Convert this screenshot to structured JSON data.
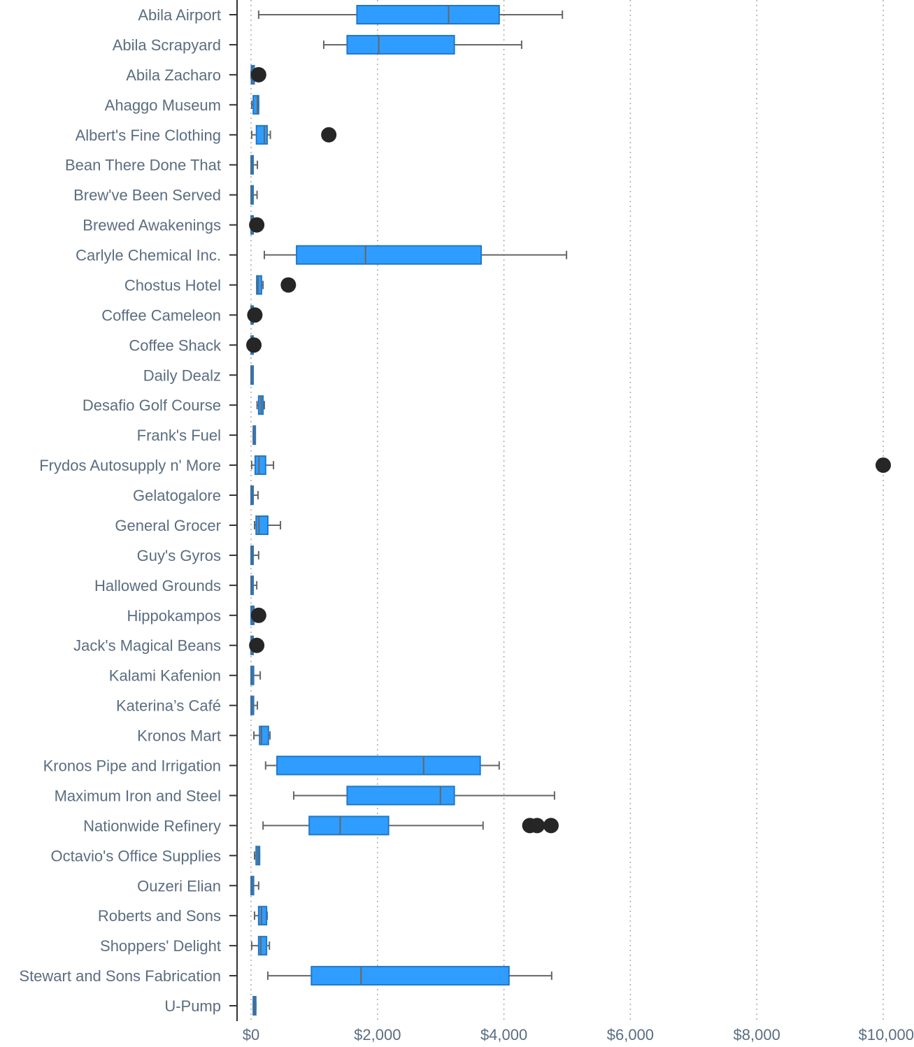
{
  "chart_data": {
    "type": "boxplot",
    "orientation": "horizontal",
    "title": "",
    "xlabel": "",
    "ylabel": "",
    "xlim": [
      0,
      10000
    ],
    "x_ticks": [
      0,
      2000,
      4000,
      6000,
      8000,
      10000
    ],
    "x_tick_labels": [
      "$0",
      "$2,000",
      "$4,000",
      "$6,000",
      "$8,000",
      "$10,000"
    ],
    "grid": "vertical dotted",
    "colors": {
      "box_fill": "#2f9dff",
      "box_stroke": "#1f78c8",
      "whisker": "#666666",
      "outlier": "#262626",
      "text": "#5b6d80"
    },
    "categories": [
      "Abila Airport",
      "Abila Scrapyard",
      "Abila Zacharo",
      "Ahaggo Museum",
      "Albert's Fine Clothing",
      "Bean There Done That",
      "Brew've Been Served",
      "Brewed Awakenings",
      "Carlyle Chemical Inc.",
      "Chostus Hotel",
      "Coffee Cameleon",
      "Coffee Shack",
      "Daily Dealz",
      "Desafio Golf Course",
      "Frank's Fuel",
      "Frydos Autosupply n' More",
      "Gelatogalore",
      "General Grocer",
      "Guy's Gyros",
      "Hallowed Grounds",
      "Hippokampos",
      "Jack's Magical Beans",
      "Kalami Kafenion",
      "Katerina’s Café",
      "Kronos Mart",
      "Kronos Pipe and Irrigation",
      "Maximum Iron and Steel",
      "Nationwide Refinery",
      "Octavio's Office Supplies",
      "Ouzeri Elian",
      "Roberts and Sons",
      "Shoppers' Delight",
      "Stewart and Sons Fabrication",
      "U-Pump"
    ],
    "boxes": [
      {
        "min": 120,
        "q1": 1675,
        "median": 3125,
        "q3": 3925,
        "max": 4925,
        "outliers": []
      },
      {
        "min": 1150,
        "q1": 1520,
        "median": 2020,
        "q3": 3215,
        "max": 4280,
        "outliers": []
      },
      {
        "min": 0,
        "q1": 5,
        "median": 20,
        "q3": 50,
        "max": 100,
        "outliers": [
          120
        ]
      },
      {
        "min": 10,
        "q1": 35,
        "median": 100,
        "q3": 120,
        "max": 120,
        "outliers": []
      },
      {
        "min": 10,
        "q1": 85,
        "median": 210,
        "q3": 255,
        "max": 305,
        "outliers": [
          1230
        ]
      },
      {
        "min": 0,
        "q1": 0,
        "median": 10,
        "q3": 30,
        "max": 100,
        "outliers": []
      },
      {
        "min": 0,
        "q1": 0,
        "median": 10,
        "q3": 30,
        "max": 95,
        "outliers": []
      },
      {
        "min": 0,
        "q1": 0,
        "median": 10,
        "q3": 25,
        "max": 25,
        "outliers": [
          90
        ]
      },
      {
        "min": 210,
        "q1": 720,
        "median": 1810,
        "q3": 3640,
        "max": 4990,
        "outliers": []
      },
      {
        "min": 90,
        "q1": 90,
        "median": 110,
        "q3": 165,
        "max": 190,
        "outliers": [
          590
        ]
      },
      {
        "min": 0,
        "q1": 0,
        "median": 10,
        "q3": 25,
        "max": 25,
        "outliers": [
          60
        ]
      },
      {
        "min": 0,
        "q1": 0,
        "median": 10,
        "q3": 20,
        "max": 20,
        "outliers": [
          45
        ]
      },
      {
        "min": 0,
        "q1": 0,
        "median": 10,
        "q3": 20,
        "max": 20,
        "outliers": []
      },
      {
        "min": 95,
        "q1": 120,
        "median": 160,
        "q3": 190,
        "max": 210,
        "outliers": []
      },
      {
        "min": 35,
        "q1": 35,
        "median": 45,
        "q3": 65,
        "max": 65,
        "outliers": []
      },
      {
        "min": 10,
        "q1": 65,
        "median": 125,
        "q3": 230,
        "max": 355,
        "outliers": [
          10000
        ]
      },
      {
        "min": 0,
        "q1": 0,
        "median": 15,
        "q3": 30,
        "max": 110,
        "outliers": []
      },
      {
        "min": 55,
        "q1": 80,
        "median": 125,
        "q3": 265,
        "max": 465,
        "outliers": []
      },
      {
        "min": 0,
        "q1": 0,
        "median": 15,
        "q3": 30,
        "max": 120,
        "outliers": []
      },
      {
        "min": 0,
        "q1": 0,
        "median": 10,
        "q3": 25,
        "max": 90,
        "outliers": []
      },
      {
        "min": 0,
        "q1": 0,
        "median": 20,
        "q3": 45,
        "max": 100,
        "outliers": [
          120
        ]
      },
      {
        "min": 0,
        "q1": 0,
        "median": 10,
        "q3": 25,
        "max": 25,
        "outliers": [
          90
        ]
      },
      {
        "min": 0,
        "q1": 0,
        "median": 15,
        "q3": 40,
        "max": 145,
        "outliers": []
      },
      {
        "min": 0,
        "q1": 0,
        "median": 15,
        "q3": 40,
        "max": 100,
        "outliers": []
      },
      {
        "min": 45,
        "q1": 135,
        "median": 165,
        "q3": 275,
        "max": 300,
        "outliers": []
      },
      {
        "min": 230,
        "q1": 410,
        "median": 2730,
        "q3": 3625,
        "max": 3925,
        "outliers": []
      },
      {
        "min": 675,
        "q1": 1520,
        "median": 2995,
        "q3": 3215,
        "max": 4800,
        "outliers": []
      },
      {
        "min": 190,
        "q1": 920,
        "median": 1410,
        "q3": 2175,
        "max": 3670,
        "outliers": [
          4410,
          4525,
          4745
        ]
      },
      {
        "min": 55,
        "q1": 80,
        "median": 110,
        "q3": 135,
        "max": 135,
        "outliers": []
      },
      {
        "min": 0,
        "q1": 0,
        "median": 15,
        "q3": 40,
        "max": 120,
        "outliers": []
      },
      {
        "min": 55,
        "q1": 120,
        "median": 165,
        "q3": 245,
        "max": 255,
        "outliers": []
      },
      {
        "min": 10,
        "q1": 120,
        "median": 155,
        "q3": 245,
        "max": 290,
        "outliers": []
      },
      {
        "min": 265,
        "q1": 955,
        "median": 1740,
        "q3": 4080,
        "max": 4755,
        "outliers": []
      },
      {
        "min": 35,
        "q1": 35,
        "median": 55,
        "q3": 75,
        "max": 75,
        "outliers": []
      }
    ]
  }
}
